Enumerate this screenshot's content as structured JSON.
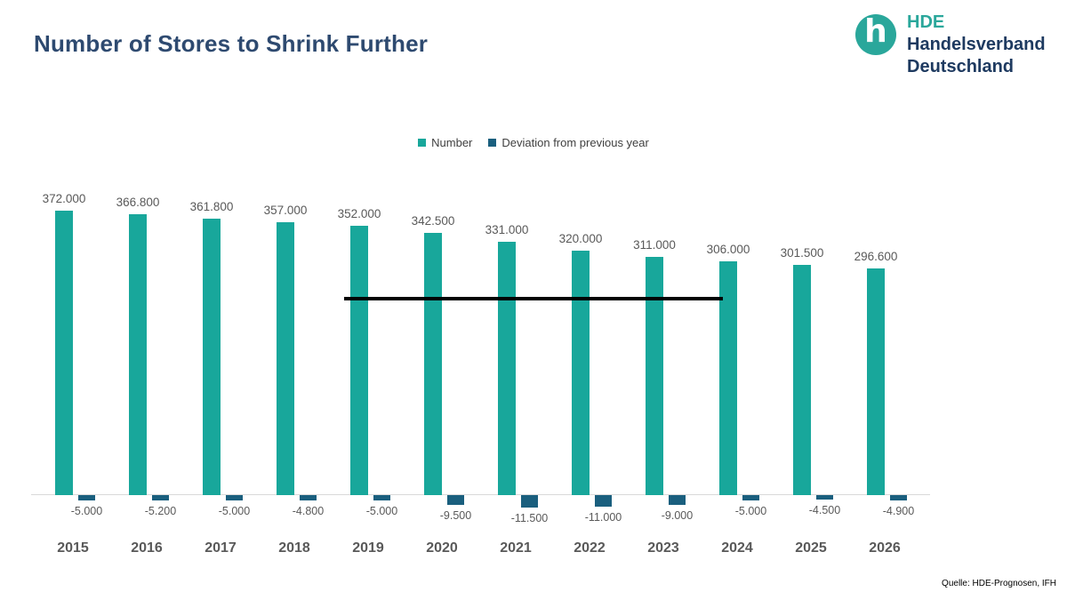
{
  "title": "Number of Stores to Shrink Further",
  "logo": {
    "monogram": "h",
    "line1": "HDE",
    "line2": "Handelsverband",
    "line3": "Deutschland"
  },
  "legend": [
    {
      "label": "Number",
      "color": "#18A79B"
    },
    {
      "label": "Deviation from previous year",
      "color": "#1A5F7E"
    }
  ],
  "source": "Quelle: HDE-Prognosen, IFH",
  "colors": {
    "number_bar": "#18A79B",
    "deviation_bar": "#1A5F7E",
    "title": "#2E4A70",
    "axis": "#D9D9D9",
    "data_label": "#595959",
    "annotation_line": "#000000",
    "logo_teal": "#2AA79B",
    "logo_navy": "#1E3A60"
  },
  "chart_data": {
    "type": "bar",
    "categories": [
      "2015",
      "2016",
      "2017",
      "2018",
      "2019",
      "2020",
      "2021",
      "2022",
      "2023",
      "2024",
      "2025",
      "2026"
    ],
    "series": [
      {
        "name": "Number",
        "values": [
          372000,
          366800,
          361800,
          357000,
          352000,
          342500,
          331000,
          320000,
          311000,
          306000,
          301500,
          296600
        ],
        "labels": [
          "372.000",
          "366.800",
          "361.800",
          "357.000",
          "352.000",
          "342.500",
          "331.000",
          "320.000",
          "311.000",
          "306.000",
          "301.500",
          "296.600"
        ]
      },
      {
        "name": "Deviation from previous year",
        "values": [
          -5000,
          -5200,
          -5000,
          -4800,
          -5000,
          -9500,
          -11500,
          -11000,
          -9000,
          -5000,
          -4500,
          -4900
        ],
        "labels": [
          "-5.000",
          "-5.200",
          "-5.000",
          "-4.800",
          "-5.000",
          "-9.500",
          "-11.500",
          "-11.000",
          "-9.000",
          "-5.000",
          "-4.500",
          "-4.900"
        ]
      }
    ],
    "annotation_line": {
      "spans_years": [
        "2019",
        "2024"
      ]
    },
    "ylim": [
      0,
      400000
    ],
    "grid": false,
    "legend_position": "top-center"
  }
}
